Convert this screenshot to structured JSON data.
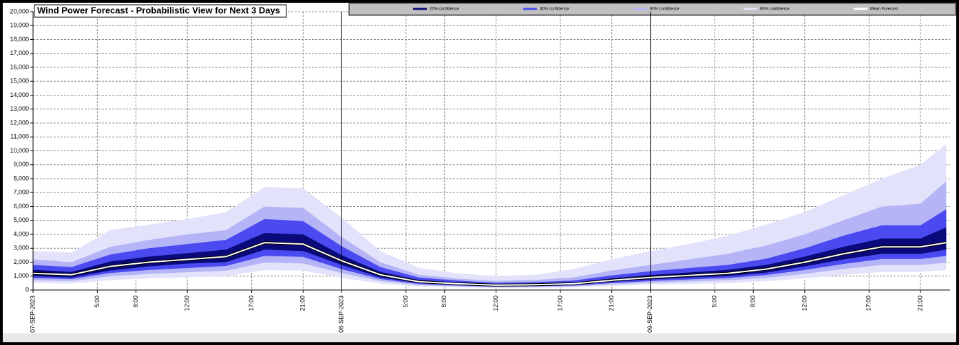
{
  "chart_data": {
    "type": "fan",
    "title": "Wind Power Forecast - Probabilistic View for Next 3 Days",
    "x": [
      0,
      3,
      6,
      9,
      12,
      15,
      18,
      21,
      24,
      27,
      30,
      33,
      36,
      39,
      42,
      45,
      48,
      51,
      54,
      57,
      60,
      63,
      66,
      69,
      71
    ],
    "xlim": [
      0,
      71.3
    ],
    "xticks": [
      {
        "value": 0,
        "label": "07-SEP-2023"
      },
      {
        "value": 5,
        "label": "5:00"
      },
      {
        "value": 8,
        "label": "8:00"
      },
      {
        "value": 12,
        "label": "12:00"
      },
      {
        "value": 17,
        "label": "17:00"
      },
      {
        "value": 21,
        "label": "21:00"
      },
      {
        "value": 24,
        "label": "08-SEP-2023"
      },
      {
        "value": 29,
        "label": "5:00"
      },
      {
        "value": 32,
        "label": "8:00"
      },
      {
        "value": 36,
        "label": "12:00"
      },
      {
        "value": 41,
        "label": "17:00"
      },
      {
        "value": 45,
        "label": "21:00"
      },
      {
        "value": 48,
        "label": "09-SEP-2023"
      },
      {
        "value": 53,
        "label": "5:00"
      },
      {
        "value": 56,
        "label": "8:00"
      },
      {
        "value": 60,
        "label": "12:00"
      },
      {
        "value": 65,
        "label": "17:00"
      },
      {
        "value": 69,
        "label": "21:00"
      }
    ],
    "day_ticks": [
      0,
      24,
      48
    ],
    "ylim": [
      0,
      20000
    ],
    "yticks": [
      0,
      {
        "value": 1000,
        "label": "1,000"
      },
      {
        "value": 2000,
        "label": "2,000"
      },
      {
        "value": 3000,
        "label": "3,000"
      },
      {
        "value": 4000,
        "label": "4,000"
      },
      {
        "value": 5000,
        "label": "5,000"
      },
      {
        "value": 6000,
        "label": "6,000"
      },
      {
        "value": 7000,
        "label": "7,000"
      },
      {
        "value": 8000,
        "label": "8,000"
      },
      {
        "value": 9000,
        "label": "9,000"
      },
      {
        "value": 10000,
        "label": "10,000"
      },
      {
        "value": 11000,
        "label": "11,000"
      },
      {
        "value": 12000,
        "label": "12,000"
      },
      {
        "value": 13000,
        "label": "13,000"
      },
      {
        "value": 14000,
        "label": "14,000"
      },
      {
        "value": 15000,
        "label": "15,000"
      },
      {
        "value": 16000,
        "label": "16,000"
      },
      {
        "value": 17000,
        "label": "17,000"
      },
      {
        "value": 18000,
        "label": "18,000"
      },
      {
        "value": 19000,
        "label": "19,000"
      },
      {
        "value": 20000,
        "label": "20,000"
      }
    ],
    "grid": true,
    "series": [
      {
        "name": "20% confidence",
        "color": "#0a0a7a",
        "lower": [
          1000,
          900,
          1400,
          1700,
          1900,
          2000,
          2900,
          2800,
          1800,
          900,
          500,
          380,
          300,
          320,
          380,
          600,
          760,
          900,
          1000,
          1250,
          1700,
          2200,
          2600,
          2600,
          2900
        ],
        "upper": [
          1450,
          1300,
          2050,
          2400,
          2650,
          2900,
          4100,
          4000,
          2500,
          1300,
          720,
          540,
          420,
          460,
          540,
          840,
          1080,
          1260,
          1450,
          1800,
          2400,
          3100,
          3700,
          3700,
          4500
        ]
      },
      {
        "name": "40% confidence",
        "color": "#4a4af0",
        "lower": [
          860,
          790,
          1220,
          1440,
          1580,
          1730,
          2450,
          2380,
          1500,
          790,
          430,
          320,
          250,
          270,
          320,
          500,
          650,
          760,
          860,
          1080,
          1440,
          1870,
          2230,
          2230,
          2450
        ],
        "upper": [
          1800,
          1650,
          2550,
          3000,
          3300,
          3600,
          5100,
          4950,
          3150,
          1650,
          900,
          680,
          520,
          570,
          680,
          1050,
          1350,
          1580,
          1800,
          2250,
          3000,
          3900,
          4650,
          4650,
          5800
        ]
      },
      {
        "name": "60% confidence",
        "color": "#b4b4f6",
        "lower": [
          700,
          640,
          990,
          1160,
          1280,
          1390,
          1970,
          1910,
          1220,
          640,
          350,
          260,
          200,
          220,
          260,
          410,
          520,
          610,
          700,
          870,
          1160,
          1510,
          1800,
          1800,
          1970
        ],
        "upper": [
          2200,
          2000,
          3100,
          3600,
          4000,
          4300,
          6000,
          5900,
          3800,
          2000,
          1100,
          820,
          650,
          720,
          900,
          1400,
          1800,
          2200,
          2600,
          3200,
          4000,
          5000,
          6000,
          6200,
          7800
        ]
      },
      {
        "name": "80% confidence",
        "color": "#e2e2fb",
        "lower": [
          500,
          460,
          710,
          840,
          920,
          1000,
          1430,
          1390,
          880,
          460,
          250,
          190,
          150,
          160,
          190,
          290,
          380,
          440,
          500,
          630,
          840,
          1090,
          1300,
          1300,
          1430
        ],
        "upper": [
          2800,
          2700,
          4300,
          4700,
          5100,
          5600,
          7400,
          7300,
          5200,
          2800,
          1600,
          1200,
          1000,
          1100,
          1500,
          2200,
          2800,
          3300,
          3900,
          4700,
          5600,
          6800,
          8000,
          9000,
          10500
        ]
      },
      {
        "name": "Mean Forecast",
        "color": "#ffffff",
        "values": [
          1200,
          1100,
          1700,
          2000,
          2200,
          2400,
          3400,
          3300,
          2100,
          1100,
          600,
          450,
          350,
          380,
          450,
          700,
          900,
          1050,
          1200,
          1500,
          2000,
          2600,
          3100,
          3100,
          3400
        ]
      }
    ]
  }
}
